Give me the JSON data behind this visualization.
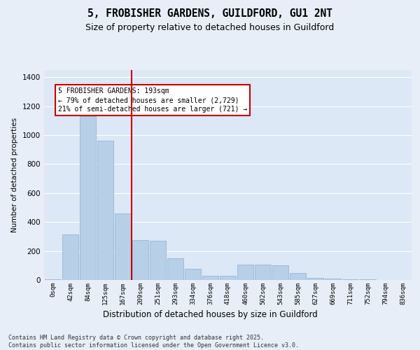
{
  "title": "5, FROBISHER GARDENS, GUILDFORD, GU1 2NT",
  "subtitle": "Size of property relative to detached houses in Guildford",
  "xlabel": "Distribution of detached houses by size in Guildford",
  "ylabel": "Number of detached properties",
  "bar_color": "#b8cfe8",
  "bar_edge_color": "#8aafd4",
  "bg_color": "#dce8f5",
  "fig_bg_color": "#e8eef8",
  "grid_color": "#ffffff",
  "annotation_text": "5 FROBISHER GARDENS: 193sqm\n← 79% of detached houses are smaller (2,729)\n21% of semi-detached houses are larger (721) →",
  "vline_x": 4.5,
  "vline_color": "#cc0000",
  "annotation_box_edge_color": "#cc0000",
  "footer": "Contains HM Land Registry data © Crown copyright and database right 2025.\nContains public sector information licensed under the Open Government Licence v3.0.",
  "categories": [
    "0sqm",
    "42sqm",
    "84sqm",
    "125sqm",
    "167sqm",
    "209sqm",
    "251sqm",
    "293sqm",
    "334sqm",
    "376sqm",
    "418sqm",
    "460sqm",
    "502sqm",
    "543sqm",
    "585sqm",
    "627sqm",
    "669sqm",
    "711sqm",
    "752sqm",
    "794sqm",
    "836sqm"
  ],
  "values": [
    5,
    315,
    1130,
    960,
    460,
    275,
    270,
    150,
    75,
    30,
    30,
    105,
    105,
    100,
    50,
    15,
    10,
    5,
    5,
    2,
    2
  ],
  "ylim": [
    0,
    1450
  ],
  "yticks": [
    0,
    200,
    400,
    600,
    800,
    1000,
    1200,
    1400
  ],
  "title_fontsize": 10.5,
  "subtitle_fontsize": 9
}
